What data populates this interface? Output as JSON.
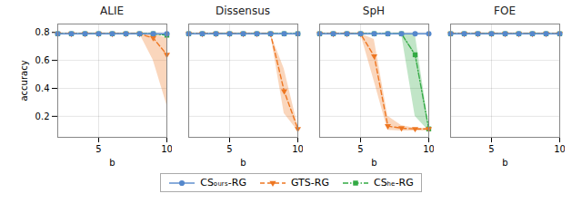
{
  "chart_data": [
    {
      "type": "line",
      "title": "ALIE",
      "xlabel": "b",
      "ylabel": "accuracy",
      "x": [
        2,
        3,
        4,
        5,
        6,
        7,
        8,
        9,
        10
      ],
      "series": [
        {
          "name": "CSₒᵤᵣₛ-RG",
          "color": "#5588CC",
          "marker": "circle",
          "line_style": "solid",
          "values": [
            0.79,
            0.79,
            0.79,
            0.79,
            0.79,
            0.79,
            0.79,
            0.79,
            0.79
          ]
        },
        {
          "name": "GTS-RG",
          "color": "#EE7722",
          "marker": "triangle-down",
          "line_style": "dashed",
          "values": [
            0.79,
            0.79,
            0.79,
            0.79,
            0.79,
            0.79,
            0.79,
            0.76,
            0.64
          ],
          "low": [
            0.79,
            0.79,
            0.79,
            0.79,
            0.79,
            0.79,
            0.79,
            0.6,
            0.28
          ],
          "high": [
            0.79,
            0.79,
            0.79,
            0.79,
            0.79,
            0.79,
            0.79,
            0.79,
            0.76
          ]
        },
        {
          "name": "CSₕₑ-RG",
          "color": "#33AA44",
          "marker": "square",
          "line_style": "dashdot",
          "values": [
            0.79,
            0.79,
            0.79,
            0.79,
            0.79,
            0.79,
            0.79,
            0.79,
            0.78
          ],
          "low": [
            0.79,
            0.79,
            0.79,
            0.79,
            0.79,
            0.79,
            0.79,
            0.79,
            0.78
          ],
          "high": [
            0.79,
            0.79,
            0.79,
            0.79,
            0.79,
            0.79,
            0.79,
            0.79,
            0.78
          ]
        }
      ],
      "xlim": [
        2,
        10
      ],
      "ylim": [
        0.05,
        0.86
      ],
      "xticks": [
        5,
        10
      ],
      "yticks": [
        0.2,
        0.4,
        0.6,
        0.8
      ],
      "grid": true,
      "legend": "bottom"
    },
    {
      "type": "line",
      "title": "Dissensus",
      "xlabel": "b",
      "x": [
        2,
        3,
        4,
        5,
        6,
        7,
        8,
        9,
        10
      ],
      "series": [
        {
          "name": "CSₒᵤᵣₛ-RG",
          "color": "#5588CC",
          "marker": "circle",
          "line_style": "solid",
          "values": [
            0.79,
            0.79,
            0.79,
            0.79,
            0.79,
            0.79,
            0.79,
            0.79,
            0.79
          ]
        },
        {
          "name": "GTS-RG",
          "color": "#EE7722",
          "marker": "triangle-down",
          "line_style": "dashed",
          "values": [
            0.79,
            0.79,
            0.79,
            0.79,
            0.79,
            0.79,
            0.79,
            0.38,
            0.11
          ],
          "low": [
            0.79,
            0.79,
            0.79,
            0.79,
            0.79,
            0.79,
            0.79,
            0.22,
            0.095
          ],
          "high": [
            0.79,
            0.79,
            0.79,
            0.79,
            0.79,
            0.79,
            0.79,
            0.54,
            0.135
          ]
        },
        {
          "name": "CSₕₑ-RG",
          "color": "#33AA44",
          "marker": "square",
          "line_style": "dashdot",
          "values": [
            0.79,
            0.79,
            0.79,
            0.79,
            0.79,
            0.79,
            0.79,
            0.79,
            0.79
          ],
          "low": [
            0.79,
            0.79,
            0.79,
            0.79,
            0.79,
            0.79,
            0.79,
            0.79,
            0.79
          ],
          "high": [
            0.79,
            0.79,
            0.79,
            0.79,
            0.79,
            0.79,
            0.79,
            0.79,
            0.79
          ]
        }
      ],
      "xlim": [
        2,
        10
      ],
      "ylim": [
        0.05,
        0.86
      ],
      "xticks": [
        5,
        10
      ],
      "yticks": [
        0.2,
        0.4,
        0.6,
        0.8
      ],
      "grid": true,
      "tick_labels": "x"
    },
    {
      "type": "line",
      "title": "SpH",
      "xlabel": "b",
      "x": [
        2,
        3,
        4,
        5,
        6,
        7,
        8,
        9,
        10
      ],
      "series": [
        {
          "name": "CSₒᵤᵣₛ-RG",
          "color": "#5588CC",
          "marker": "circle",
          "line_style": "solid",
          "values": [
            0.79,
            0.79,
            0.79,
            0.79,
            0.79,
            0.79,
            0.79,
            0.79,
            0.79
          ]
        },
        {
          "name": "GTS-RG",
          "color": "#EE7722",
          "marker": "triangle-down",
          "line_style": "dashed",
          "values": [
            0.79,
            0.79,
            0.79,
            0.79,
            0.63,
            0.13,
            0.115,
            0.11,
            0.11
          ],
          "low": [
            0.79,
            0.79,
            0.79,
            0.79,
            0.45,
            0.1,
            0.095,
            0.095,
            0.095
          ],
          "high": [
            0.79,
            0.79,
            0.79,
            0.79,
            0.75,
            0.2,
            0.135,
            0.115,
            0.115
          ]
        },
        {
          "name": "CSₕₑ-RG",
          "color": "#33AA44",
          "marker": "square",
          "line_style": "dashdot",
          "values": [
            0.79,
            0.79,
            0.79,
            0.79,
            0.79,
            0.79,
            0.79,
            0.64,
            0.11
          ],
          "low": [
            0.79,
            0.79,
            0.79,
            0.79,
            0.79,
            0.79,
            0.79,
            0.2,
            0.095
          ],
          "high": [
            0.79,
            0.79,
            0.79,
            0.79,
            0.79,
            0.79,
            0.79,
            0.79,
            0.14
          ]
        }
      ],
      "xlim": [
        2,
        10
      ],
      "ylim": [
        0.05,
        0.86
      ],
      "xticks": [
        5,
        10
      ],
      "yticks": [
        0.2,
        0.4,
        0.6,
        0.8
      ],
      "grid": true,
      "tick_labels": "x"
    },
    {
      "type": "line",
      "title": "FOE",
      "xlabel": "b",
      "x": [
        2,
        3,
        4,
        5,
        6,
        7,
        8,
        9,
        10
      ],
      "series": [
        {
          "name": "CSₒᵤᵣₛ-RG",
          "color": "#5588CC",
          "marker": "circle",
          "line_style": "solid",
          "values": [
            0.79,
            0.79,
            0.79,
            0.79,
            0.79,
            0.79,
            0.79,
            0.79,
            0.79
          ]
        },
        {
          "name": "GTS-RG",
          "color": "#EE7722",
          "marker": "triangle-down",
          "line_style": "dashed",
          "values": [
            0.79,
            0.79,
            0.79,
            0.79,
            0.79,
            0.79,
            0.79,
            0.79,
            0.79
          ],
          "low": [
            0.79,
            0.79,
            0.79,
            0.79,
            0.79,
            0.79,
            0.79,
            0.79,
            0.79
          ],
          "high": [
            0.79,
            0.79,
            0.79,
            0.79,
            0.79,
            0.79,
            0.79,
            0.79,
            0.79
          ]
        },
        {
          "name": "CSₕₑ-RG",
          "color": "#33AA44",
          "marker": "square",
          "line_style": "dashdot",
          "values": [
            0.79,
            0.79,
            0.79,
            0.79,
            0.79,
            0.79,
            0.79,
            0.79,
            0.79
          ],
          "low": [
            0.79,
            0.79,
            0.79,
            0.79,
            0.79,
            0.79,
            0.79,
            0.79,
            0.79
          ],
          "high": [
            0.79,
            0.79,
            0.79,
            0.79,
            0.79,
            0.79,
            0.79,
            0.79,
            0.79
          ]
        }
      ],
      "xlim": [
        2,
        10
      ],
      "ylim": [
        0.05,
        0.86
      ],
      "xticks": [
        5,
        10
      ],
      "yticks": [
        0.2,
        0.4,
        0.6,
        0.8
      ],
      "grid": true,
      "tick_labels": "x"
    }
  ]
}
